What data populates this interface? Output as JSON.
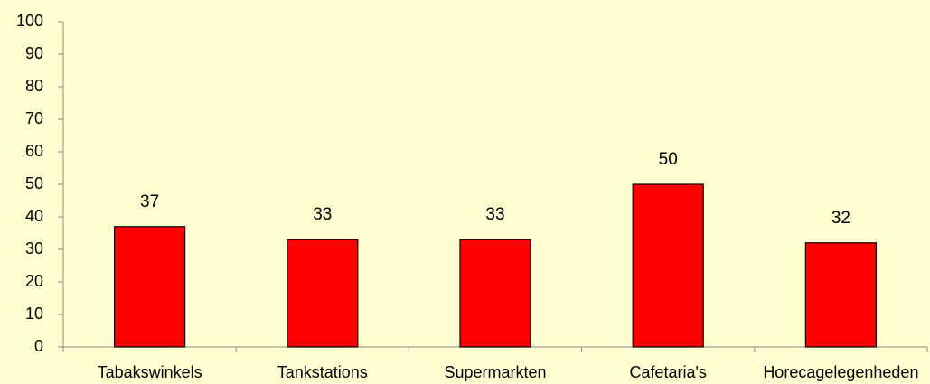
{
  "chart_data": {
    "type": "bar",
    "categories": [
      "Tabakswinkels",
      "Tankstations",
      "Supermarkten",
      "Cafetaria's",
      "Horecagelegenheden"
    ],
    "values": [
      37,
      33,
      33,
      50,
      32
    ],
    "color": "#ff0000",
    "ylim": [
      0,
      100
    ],
    "yticks": [
      0,
      10,
      20,
      30,
      40,
      50,
      60,
      70,
      80,
      90,
      100
    ],
    "grid": false
  }
}
